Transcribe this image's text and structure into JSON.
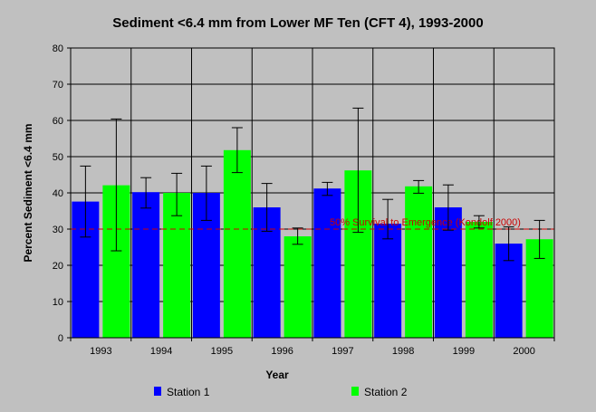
{
  "chart_data": {
    "type": "bar",
    "title": "Sediment <6.4 mm from Lower MF Ten (CFT 4), 1993-2000",
    "xlabel": "Year",
    "ylabel": "Percent Sediment <6.4 mm",
    "ylim": [
      0,
      80
    ],
    "yticks": [
      0,
      10,
      20,
      30,
      40,
      50,
      60,
      70,
      80
    ],
    "grid": true,
    "categories": [
      "1993",
      "1994",
      "1995",
      "1996",
      "1997",
      "1998",
      "1999",
      "2000"
    ],
    "series": [
      {
        "name": "Station 1",
        "color": "#0000ff",
        "values": [
          37.6,
          40.2,
          40.0,
          36.0,
          41.2,
          31.5,
          36.0,
          26.0
        ],
        "error_low": [
          27.8,
          35.8,
          32.4,
          29.4,
          39.3,
          27.3,
          29.7,
          21.3
        ],
        "error_high": [
          47.4,
          44.2,
          47.4,
          42.6,
          42.9,
          38.2,
          42.2,
          30.6
        ]
      },
      {
        "name": "Station 2",
        "color": "#00ff00",
        "values": [
          42.1,
          40.0,
          51.8,
          28.0,
          46.2,
          41.8,
          32.0,
          27.2
        ],
        "error_low": [
          24.0,
          33.7,
          45.6,
          25.8,
          29.1,
          39.9,
          30.3,
          21.9
        ],
        "error_high": [
          60.4,
          45.4,
          58.0,
          30.3,
          63.4,
          43.4,
          33.7,
          32.4
        ]
      }
    ],
    "reference_line": {
      "value": 30,
      "label": "50% Survival to Emergence (Kondolf 2000)",
      "color": "#cc0000"
    },
    "legend_position": "bottom"
  }
}
